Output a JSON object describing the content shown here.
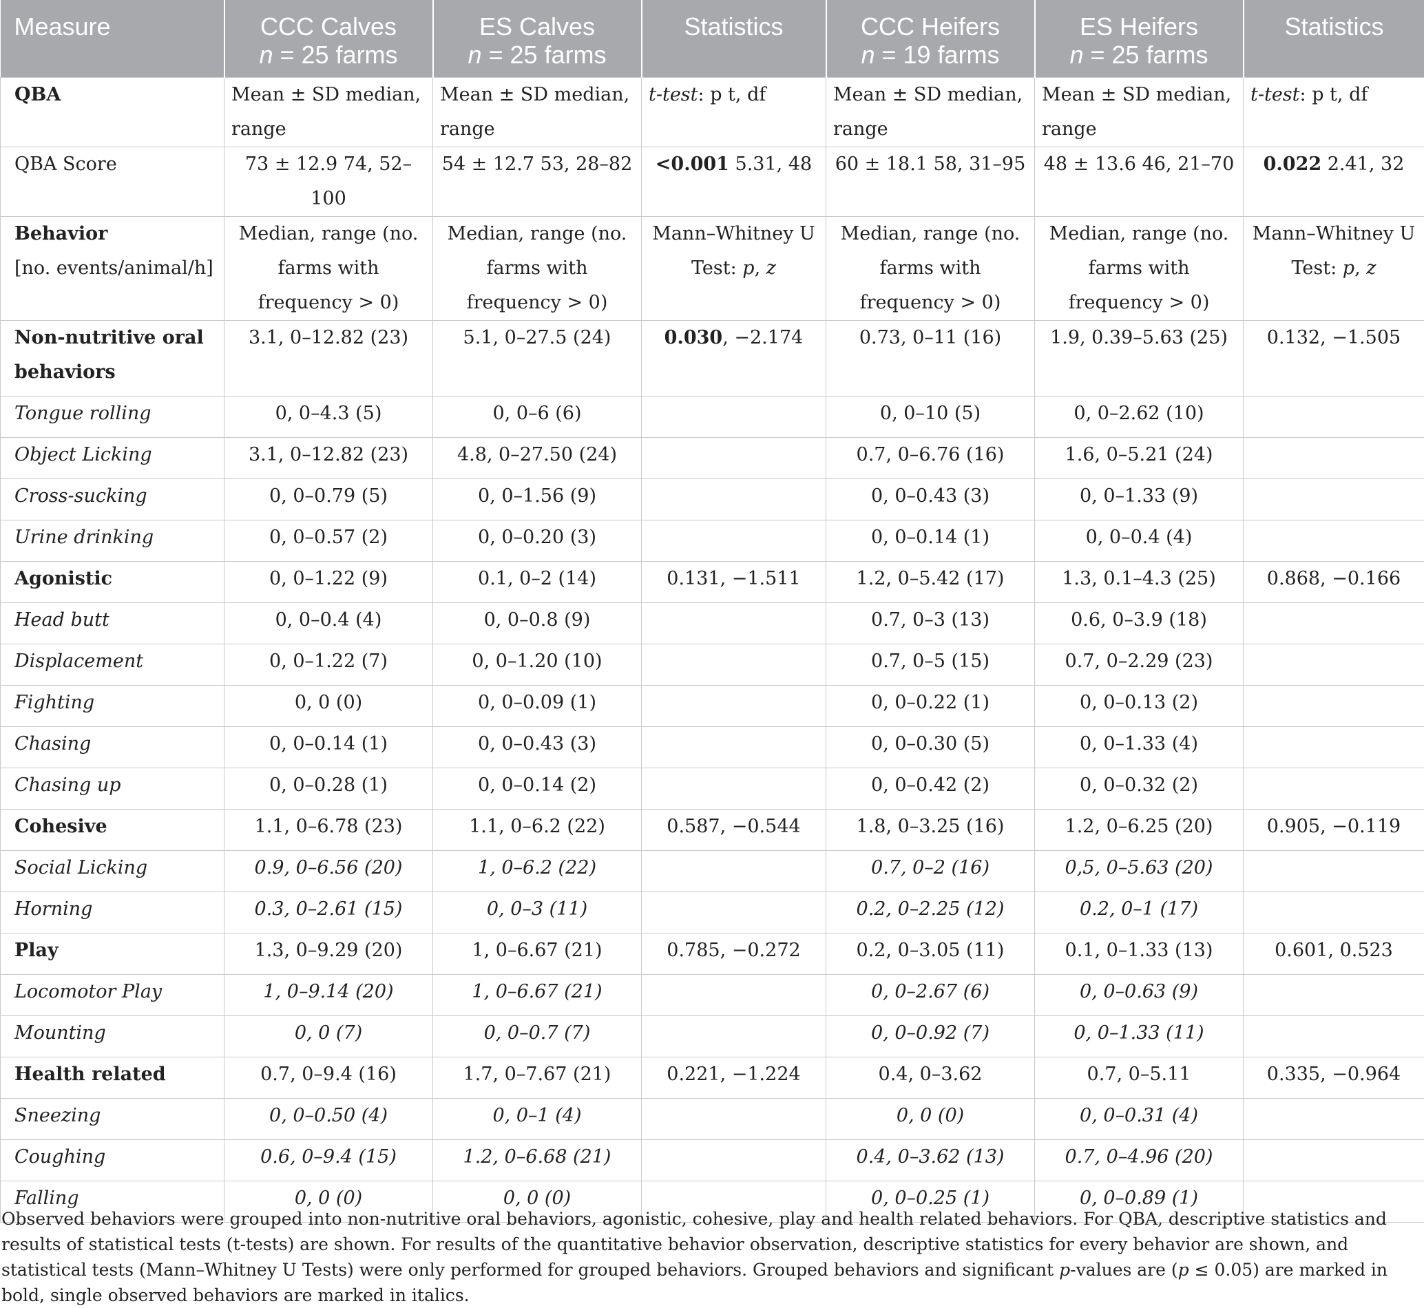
{
  "header": [
    {
      "line1": "Measure",
      "line2": ""
    },
    {
      "line1": "CCC Calves",
      "line2_n": "n",
      "line2_rest": " = 25 farms"
    },
    {
      "line1": "ES Calves",
      "line2_n": "n",
      "line2_rest": " = 25 farms"
    },
    {
      "line1": "Statistics",
      "line2": ""
    },
    {
      "line1": "CCC Heifers",
      "line2_n": "n",
      "line2_rest": " = 19 farms"
    },
    {
      "line1": "ES Heifers",
      "line2_n": "n",
      "line2_rest": " = 25 farms"
    },
    {
      "line1": "Statistics",
      "line2": ""
    }
  ],
  "qba_header": {
    "label": "QBA",
    "ccc_calves": "Mean ± SD median, range",
    "es_calves": "Mean ± SD median, range",
    "stat_italic": "t-test",
    "stat_rest": ": p t, df",
    "ccc_heifers": "Mean ± SD median, range",
    "es_heifers": "Mean ± SD median, range",
    "stat2_italic": "t-test",
    "stat2_rest": ": p t, df"
  },
  "qba_score": {
    "label": "QBA Score",
    "ccc_calves": "73 ± 12.9 74, 52–100",
    "es_calves": "54 ± 12.7 53, 28–82",
    "stat_bold": "<0.001",
    "stat_rest": " 5.31, 48",
    "ccc_heifers": "60 ± 18.1 58, 31–95",
    "es_heifers": "48 ± 13.6 46, 21–70",
    "stat2_bold": "0.022",
    "stat2_rest": " 2.41, 32"
  },
  "behavior_header": {
    "label": "Behavior",
    "sublabel": "[no. events/animal/h]",
    "ccc_calves": "Median, range (no. farms with frequency > 0)",
    "es_calves": "Median, range (no. farms with frequency > 0)",
    "stat_a": "Mann–Whitney U Test: ",
    "stat_p": "p",
    "stat_sep": ", ",
    "stat_z": "z",
    "ccc_heifers": "Median, range (no. farms with frequency > 0)",
    "es_heifers": "Median, range (no. farms with frequency > 0)"
  },
  "rows": [
    {
      "label": "Non-nutritive oral behaviors",
      "type": "group",
      "cells": [
        "3.1, 0–12.82 (23)",
        "5.1, 0–27.5 (24)",
        "",
        "0.73, 0–11 (16)",
        "1.9, 0.39–5.63 (25)",
        "0.132, −1.505"
      ],
      "stat_bold": "0.030",
      "stat_rest": ", −2.174"
    },
    {
      "label": "Tongue rolling",
      "type": "single",
      "cells": [
        "0, 0–4.3 (5)",
        "0, 0–6 (6)",
        "",
        "0, 0–10 (5)",
        "0, 0–2.62 (10)",
        ""
      ]
    },
    {
      "label": "Object Licking",
      "type": "single",
      "cells": [
        "3.1, 0–12.82 (23)",
        "4.8, 0–27.50 (24)",
        "",
        "0.7, 0–6.76 (16)",
        "1.6, 0–5.21 (24)",
        ""
      ]
    },
    {
      "label": "Cross-sucking",
      "type": "single",
      "cells": [
        "0, 0–0.79 (5)",
        "0, 0–1.56 (9)",
        "",
        "0, 0–0.43 (3)",
        "0, 0–1.33 (9)",
        ""
      ]
    },
    {
      "label": "Urine drinking",
      "type": "single",
      "cells": [
        "0, 0–0.57 (2)",
        "0, 0–0.20 (3)",
        "",
        "0, 0–0.14 (1)",
        "0, 0–0.4 (4)",
        ""
      ]
    },
    {
      "label": "Agonistic",
      "type": "group",
      "cells": [
        "0, 0–1.22 (9)",
        "0.1, 0–2 (14)",
        "0.131, −1.511",
        "1.2, 0–5.42 (17)",
        "1.3, 0.1–4.3 (25)",
        "0.868, −0.166"
      ]
    },
    {
      "label": "Head butt",
      "type": "single",
      "cells": [
        "0, 0–0.4 (4)",
        "0, 0–0.8 (9)",
        "",
        "0.7, 0–3 (13)",
        "0.6, 0–3.9 (18)",
        ""
      ]
    },
    {
      "label": "Displacement",
      "type": "single",
      "cells": [
        "0, 0–1.22 (7)",
        "0, 0–1.20 (10)",
        "",
        "0.7, 0–5 (15)",
        "0.7, 0–2.29 (23)",
        ""
      ]
    },
    {
      "label": "Fighting",
      "type": "single",
      "cells": [
        "0, 0 (0)",
        "0, 0–0.09 (1)",
        "",
        "0, 0–0.22 (1)",
        "0, 0–0.13 (2)",
        ""
      ]
    },
    {
      "label": "Chasing",
      "type": "single",
      "cells": [
        "0, 0–0.14 (1)",
        "0, 0–0.43 (3)",
        "",
        "0, 0–0.30 (5)",
        "0, 0–1.33 (4)",
        ""
      ]
    },
    {
      "label": "Chasing up",
      "type": "single",
      "cells": [
        "0, 0–0.28 (1)",
        "0, 0–0.14 (2)",
        "",
        "0, 0–0.42 (2)",
        "0, 0–0.32 (2)",
        ""
      ]
    },
    {
      "label": "Cohesive",
      "type": "group",
      "cells": [
        "1.1, 0–6.78 (23)",
        "1.1, 0–6.2 (22)",
        "0.587, −0.544",
        "1.8, 0–3.25 (16)",
        "1.2, 0–6.25 (20)",
        "0.905, −0.119"
      ]
    },
    {
      "label": "Social Licking",
      "type": "single",
      "italic_cells": true,
      "cells": [
        "0.9, 0–6.56 (20)",
        "1, 0–6.2 (22)",
        "",
        "0.7, 0–2 (16)",
        "0,5, 0–5.63 (20)",
        ""
      ]
    },
    {
      "label": "Horning",
      "type": "single",
      "italic_cells": true,
      "cells": [
        "0.3, 0–2.61 (15)",
        "0, 0–3 (11)",
        "",
        "0.2, 0–2.25 (12)",
        "0.2, 0–1 (17)",
        ""
      ]
    },
    {
      "label": "Play",
      "type": "group",
      "cells": [
        "1.3, 0–9.29 (20)",
        "1, 0–6.67 (21)",
        "0.785, −0.272",
        "0.2, 0–3.05 (11)",
        "0.1, 0–1.33 (13)",
        "0.601, 0.523"
      ]
    },
    {
      "label": "Locomotor Play",
      "type": "single",
      "italic_cells": true,
      "cells": [
        "1, 0–9.14 (20)",
        "1, 0–6.67 (21)",
        "",
        "0, 0–2.67 (6)",
        "0, 0–0.63 (9)",
        ""
      ]
    },
    {
      "label": "Mounting",
      "type": "single",
      "italic_cells": true,
      "cells": [
        "0, 0 (7)",
        "0, 0–0.7 (7)",
        "",
        "0, 0–0.92 (7)",
        "0, 0–1.33 (11)",
        ""
      ]
    },
    {
      "label": "Health related",
      "type": "group",
      "cells": [
        "0.7, 0–9.4 (16)",
        "1.7, 0–7.67 (21)",
        "0.221, −1.224",
        "0.4, 0–3.62",
        "0.7, 0–5.11",
        "0.335, −0.964"
      ]
    },
    {
      "label": "Sneezing",
      "type": "single",
      "italic_cells": true,
      "cells": [
        "0, 0–0.50 (4)",
        "0, 0–1 (4)",
        "",
        "0, 0 (0)",
        "0, 0–0.31 (4)",
        ""
      ]
    },
    {
      "label": "Coughing",
      "type": "single",
      "italic_cells": true,
      "cells": [
        "0.6, 0–9.4 (15)",
        "1.2, 0–6.68 (21)",
        "",
        "0.4, 0–3.62 (13)",
        "0.7, 0–4.96 (20)",
        ""
      ]
    },
    {
      "label": "Falling",
      "type": "single",
      "italic_cells": true,
      "cells": [
        "0, 0 (0)",
        "0, 0 (0)",
        "",
        "0, 0–0.25 (1)",
        "0, 0–0.89 (1)",
        ""
      ]
    }
  ],
  "caption": {
    "part1": "Observed behaviors were grouped into non-nutritive oral behaviors, agonistic, cohesive, play and health related behaviors. For QBA, descriptive statistics and results of statistical tests (t-tests) are shown. For results of the quantitative behavior observation, descriptive statistics for every behavior are shown, and statistical tests (Mann–Whitney U Tests) were only performed for grouped behaviors. Grouped behaviors and significant ",
    "p": "p",
    "part2": "-values are (",
    "p2": "p",
    "part3": " ≤ 0.05) are marked in bold, single observed behaviors are marked in italics."
  }
}
